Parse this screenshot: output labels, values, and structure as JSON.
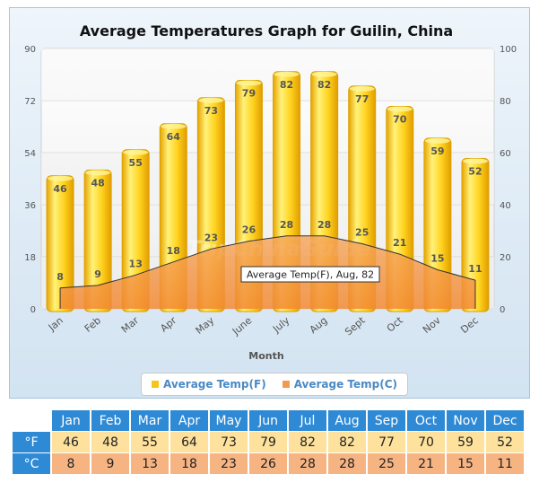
{
  "chart_data": {
    "type": "bar",
    "title": "Average Temperatures Graph for Guilin, China",
    "xlabel": "Month",
    "categories": [
      "Jan",
      "Feb",
      "Mar",
      "Apr",
      "May",
      "June",
      "July",
      "Aug",
      "Sept",
      "Oct",
      "Nov",
      "Dec"
    ],
    "series": [
      {
        "name": "Average Temp(F)",
        "kind": "bar",
        "axis": "left",
        "color": "#f5c518",
        "values": [
          46,
          48,
          55,
          64,
          73,
          79,
          82,
          82,
          77,
          70,
          59,
          52
        ]
      },
      {
        "name": "Average Temp(C)",
        "kind": "area",
        "axis": "right",
        "color": "#f39a4c",
        "values": [
          8,
          9,
          13,
          18,
          23,
          26,
          28,
          28,
          25,
          21,
          15,
          11
        ]
      }
    ],
    "left_ticks": [
      0,
      18,
      36,
      54,
      72,
      90
    ],
    "right_ticks": [
      0,
      20,
      40,
      60,
      80,
      100
    ],
    "ylim_left": [
      0,
      90
    ],
    "ylim_right": [
      0,
      100
    ],
    "tooltip": "Average Temp(F), Aug, 82",
    "watermark": "TripChinaGuide",
    "grid": true,
    "legend_position": "bottom"
  },
  "table": {
    "months": [
      "Jan",
      "Feb",
      "Mar",
      "Apr",
      "May",
      "Jun",
      "Jul",
      "Aug",
      "Sep",
      "Oct",
      "Nov",
      "Dec"
    ],
    "rows": [
      {
        "label": "°F",
        "values": [
          "46",
          "48",
          "55",
          "64",
          "73",
          "79",
          "82",
          "82",
          "77",
          "70",
          "59",
          "52"
        ]
      },
      {
        "label": "°C",
        "values": [
          "8",
          "9",
          "13",
          "18",
          "23",
          "26",
          "28",
          "28",
          "25",
          "21",
          "15",
          "11"
        ]
      }
    ]
  }
}
